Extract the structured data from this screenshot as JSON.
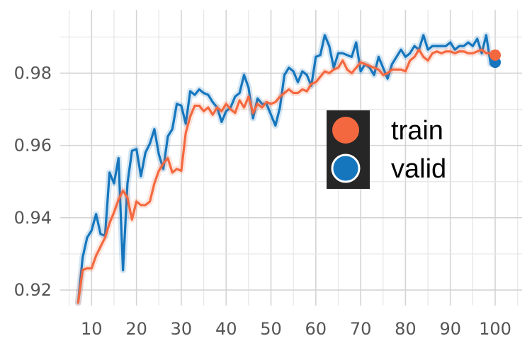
{
  "chart_data": {
    "type": "line",
    "title": "",
    "xlabel": "",
    "ylabel": "",
    "xlim": [
      3,
      106
    ],
    "ylim": [
      0.9157,
      0.9975
    ],
    "x_ticks": [
      10,
      20,
      30,
      40,
      50,
      60,
      70,
      80,
      90,
      100
    ],
    "x_tick_labels": [
      "10",
      "20",
      "30",
      "40",
      "50",
      "60",
      "70",
      "80",
      "90",
      "100"
    ],
    "y_ticks": [
      0.92,
      0.94,
      0.96,
      0.98
    ],
    "y_tick_labels": [
      "0.92",
      "0.94",
      "0.96",
      "0.98"
    ],
    "grid": true,
    "legend": {
      "placement": "center-right",
      "background": "#262626",
      "entries": [
        {
          "label": "train",
          "color": "#f4683f"
        },
        {
          "label": "valid",
          "color": "#1576bd"
        }
      ]
    },
    "series": [
      {
        "name": "train",
        "color": "#f4683f",
        "end_marker": true,
        "x": [
          7,
          8,
          9,
          10,
          11,
          12,
          13,
          14,
          15,
          16,
          17,
          18,
          19,
          20,
          21,
          22,
          23,
          24,
          25,
          26,
          27,
          28,
          29,
          30,
          31,
          32,
          33,
          34,
          35,
          36,
          37,
          38,
          39,
          40,
          41,
          42,
          43,
          44,
          45,
          46,
          47,
          48,
          49,
          50,
          51,
          52,
          53,
          54,
          55,
          56,
          57,
          58,
          59,
          60,
          61,
          62,
          63,
          64,
          65,
          66,
          67,
          68,
          69,
          70,
          71,
          72,
          73,
          74,
          75,
          76,
          77,
          78,
          79,
          80,
          81,
          82,
          83,
          84,
          85,
          86,
          87,
          88,
          89,
          90,
          91,
          92,
          93,
          94,
          95,
          96,
          97,
          98,
          99,
          100
        ],
        "y": [
          0.9165,
          0.9255,
          0.926,
          0.926,
          0.9295,
          0.932,
          0.9345,
          0.9385,
          0.9415,
          0.945,
          0.9475,
          0.9455,
          0.9395,
          0.9445,
          0.9435,
          0.9435,
          0.9445,
          0.9495,
          0.953,
          0.955,
          0.9565,
          0.9525,
          0.9535,
          0.953,
          0.9635,
          0.968,
          0.971,
          0.971,
          0.9695,
          0.9705,
          0.9685,
          0.9705,
          0.9695,
          0.9715,
          0.97,
          0.969,
          0.9725,
          0.9705,
          0.9735,
          0.969,
          0.9715,
          0.9705,
          0.972,
          0.9715,
          0.972,
          0.9735,
          0.9745,
          0.9755,
          0.9745,
          0.9745,
          0.9755,
          0.975,
          0.977,
          0.9775,
          0.979,
          0.9805,
          0.98,
          0.981,
          0.9815,
          0.9835,
          0.981,
          0.98,
          0.9815,
          0.983,
          0.9825,
          0.982,
          0.9815,
          0.981,
          0.9795,
          0.98,
          0.981,
          0.981,
          0.981,
          0.9805,
          0.9835,
          0.9845,
          0.9865,
          0.9845,
          0.9835,
          0.9855,
          0.986,
          0.9855,
          0.986,
          0.986,
          0.9855,
          0.986,
          0.986,
          0.9855,
          0.9855,
          0.986,
          0.9865,
          0.9855,
          0.9855,
          0.985
        ]
      },
      {
        "name": "valid",
        "color": "#1576bd",
        "end_marker": true,
        "x": [
          7,
          8,
          9,
          10,
          11,
          12,
          13,
          14,
          15,
          16,
          17,
          18,
          19,
          20,
          21,
          22,
          23,
          24,
          25,
          26,
          27,
          28,
          29,
          30,
          31,
          32,
          33,
          34,
          35,
          36,
          37,
          38,
          39,
          40,
          41,
          42,
          43,
          44,
          45,
          46,
          47,
          48,
          49,
          50,
          51,
          52,
          53,
          54,
          55,
          56,
          57,
          58,
          59,
          60,
          61,
          62,
          63,
          64,
          65,
          66,
          67,
          68,
          69,
          70,
          71,
          72,
          73,
          74,
          75,
          76,
          77,
          78,
          79,
          80,
          81,
          82,
          83,
          84,
          85,
          86,
          87,
          88,
          89,
          90,
          91,
          92,
          93,
          94,
          95,
          96,
          97,
          98,
          99,
          100
        ],
        "y": [
          0.9165,
          0.929,
          0.9345,
          0.9365,
          0.941,
          0.9355,
          0.935,
          0.9525,
          0.9495,
          0.9565,
          0.9255,
          0.9495,
          0.9585,
          0.959,
          0.9515,
          0.958,
          0.9605,
          0.9645,
          0.9575,
          0.9535,
          0.9625,
          0.9645,
          0.9715,
          0.971,
          0.966,
          0.975,
          0.974,
          0.9755,
          0.9745,
          0.974,
          0.972,
          0.9705,
          0.9665,
          0.9695,
          0.9705,
          0.9735,
          0.9745,
          0.9795,
          0.976,
          0.9675,
          0.973,
          0.9715,
          0.9715,
          0.9685,
          0.9655,
          0.9705,
          0.9795,
          0.9815,
          0.9805,
          0.9775,
          0.9805,
          0.9795,
          0.9765,
          0.9845,
          0.985,
          0.9905,
          0.9875,
          0.9815,
          0.9855,
          0.9855,
          0.985,
          0.9845,
          0.9885,
          0.9805,
          0.9825,
          0.9815,
          0.9795,
          0.9845,
          0.9815,
          0.9785,
          0.9825,
          0.9845,
          0.9865,
          0.9845,
          0.9855,
          0.9875,
          0.9865,
          0.9905,
          0.9865,
          0.9875,
          0.9875,
          0.9875,
          0.9875,
          0.9885,
          0.9865,
          0.9875,
          0.9875,
          0.9885,
          0.9875,
          0.9895,
          0.9855,
          0.9905,
          0.9825,
          0.983
        ]
      }
    ]
  }
}
